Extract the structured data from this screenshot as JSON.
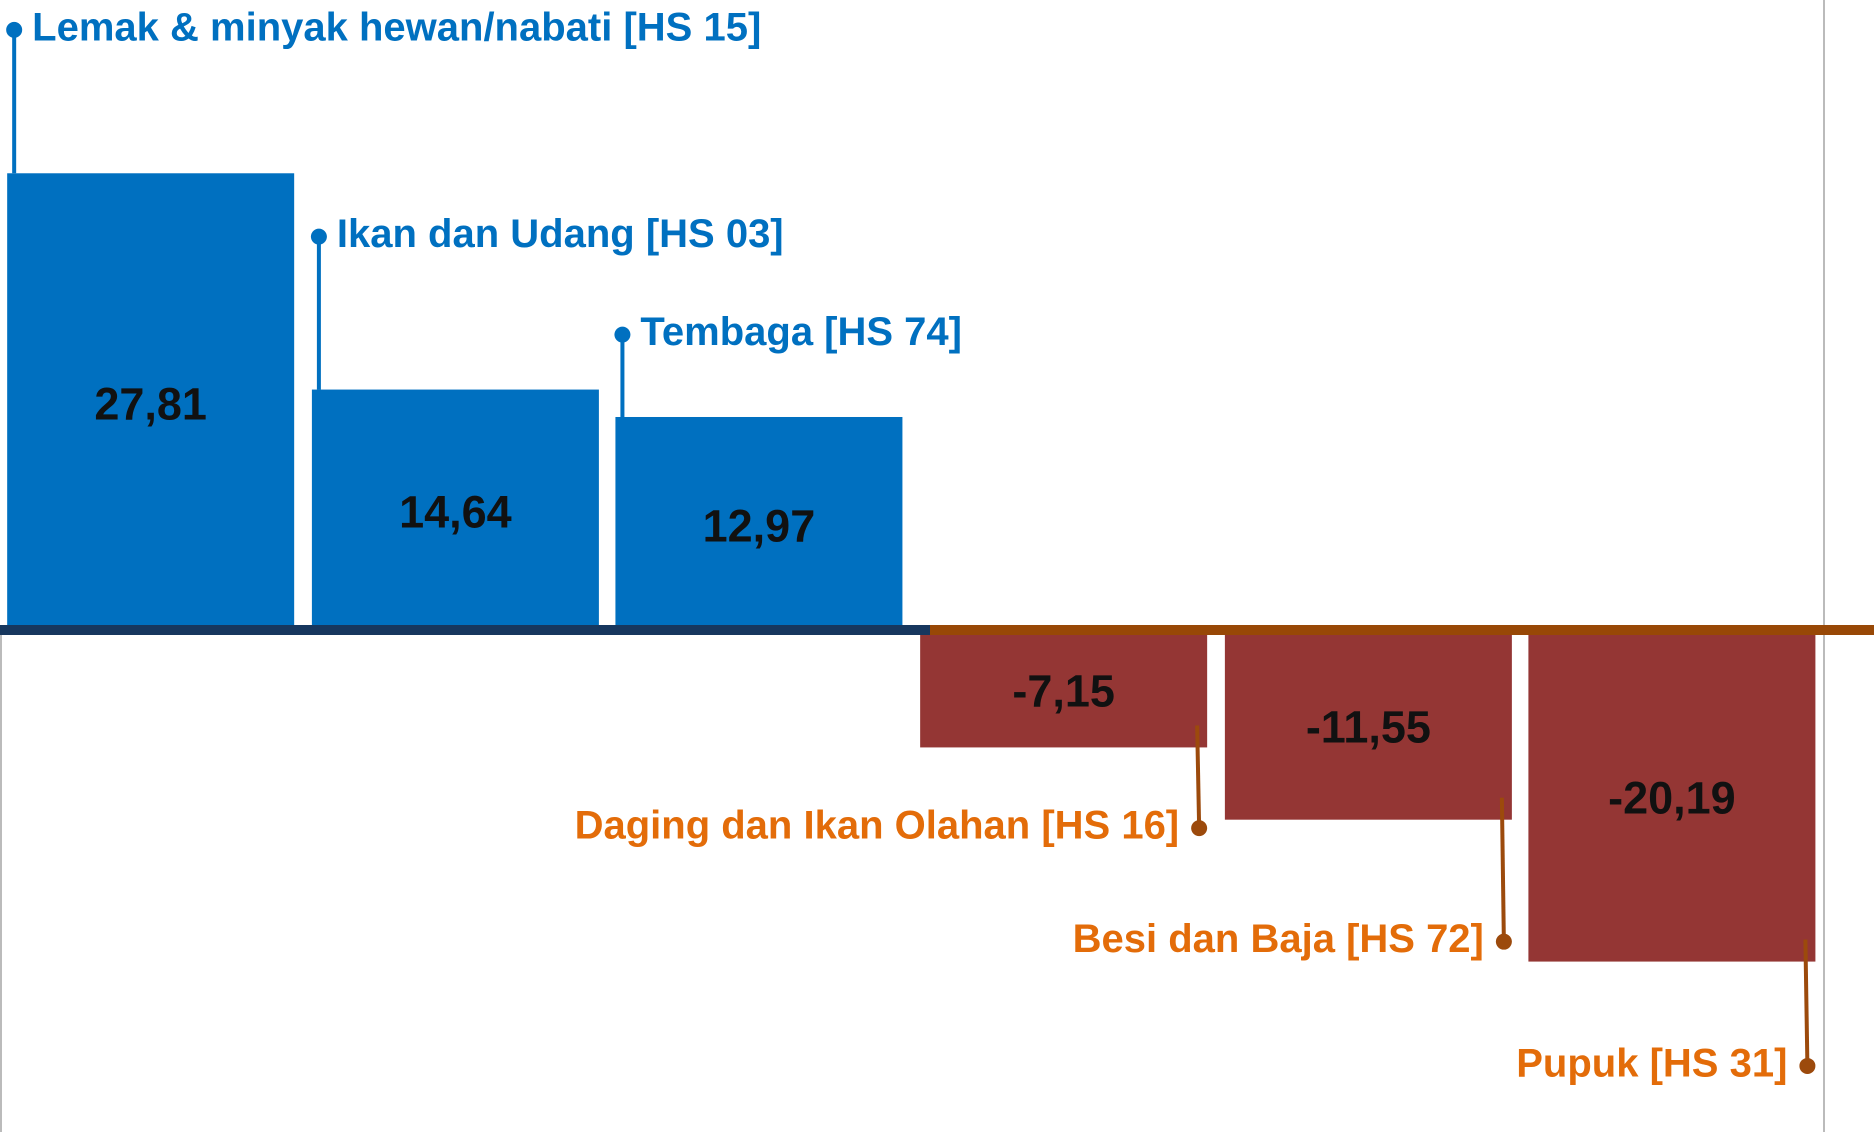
{
  "chart_data": {
    "type": "bar",
    "categories": [
      "Lemak & minyak hewan/nabati  [HS 15]",
      "Ikan dan Udang [HS 03]",
      "Tembaga [HS 74]",
      "Daging dan Ikan Olahan  [HS 16]",
      "Besi dan Baja  [HS 72]",
      "Pupuk  [HS 31]"
    ],
    "values": [
      27.81,
      14.64,
      12.97,
      -7.15,
      -11.55,
      -20.19
    ],
    "value_labels": [
      "27,81",
      "14,64",
      "12,97",
      "-7,15",
      "-11,55",
      "-20,19"
    ],
    "colors": [
      "#0070c0",
      "#0070c0",
      "#0070c0",
      "#943634",
      "#943634",
      "#943634"
    ],
    "label_colors": [
      "#0070c0",
      "#0070c0",
      "#0070c0",
      "#e36c09",
      "#e36c09",
      "#e36c09"
    ]
  }
}
